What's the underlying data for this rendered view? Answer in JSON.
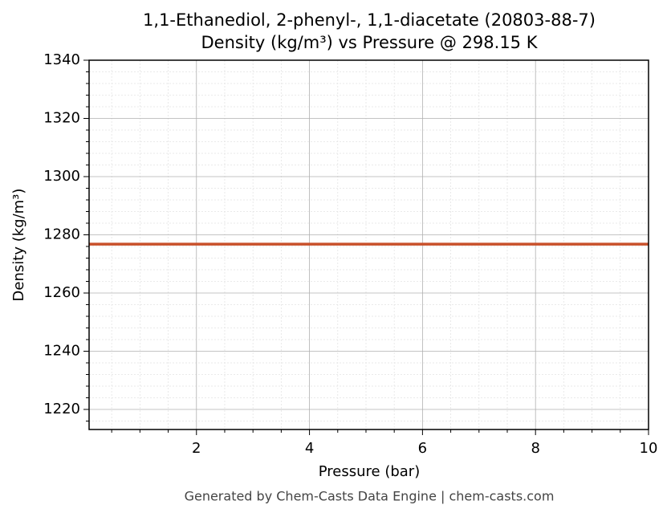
{
  "chart_data": {
    "type": "line",
    "title": "1,1-Ethanediol, 2-phenyl-, 1,1-diacetate (20803-88-7)",
    "subtitle": "Density (kg/m³) vs Pressure @ 298.15 K",
    "xlabel": "Pressure (bar)",
    "ylabel": "Density (kg/m³)",
    "footer": "Generated by Chem-Casts Data Engine | chem-casts.com",
    "x": [
      0.1,
      10
    ],
    "series": [
      {
        "name": "Density",
        "color": "#c8502a",
        "values": [
          1276.8,
          1276.8
        ]
      }
    ],
    "xlim": [
      0.1,
      10
    ],
    "ylim": [
      1213.1,
      1340
    ],
    "xticks": [
      2,
      4,
      6,
      8,
      10
    ],
    "yticks": [
      1220,
      1240,
      1260,
      1280,
      1300,
      1320,
      1340
    ],
    "minor_xticks": [
      0.5,
      1,
      1.5,
      2.5,
      3,
      3.5,
      4.5,
      5,
      5.5,
      6.5,
      7,
      7.5,
      8.5,
      9,
      9.5
    ],
    "minor_yticks": [
      1216,
      1224,
      1228,
      1232,
      1236,
      1244,
      1248,
      1252,
      1256,
      1264,
      1268,
      1272,
      1276,
      1284,
      1288,
      1292,
      1296,
      1304,
      1308,
      1312,
      1316,
      1324,
      1328,
      1332,
      1336
    ],
    "grid": true
  }
}
